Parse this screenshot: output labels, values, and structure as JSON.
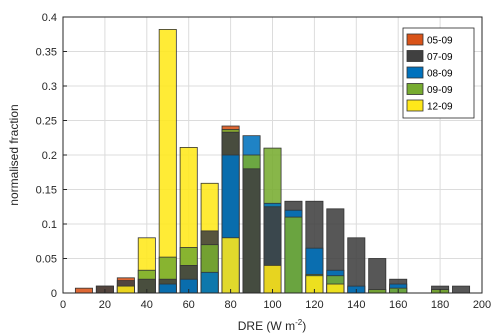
{
  "chart_data": {
    "type": "bar",
    "bar_mode": "overlaid",
    "xlabel": "DRE (W m",
    "xlabel_sup": "-2",
    "xlabel_suffix": ")",
    "ylabel": "normalised fraction",
    "xlim": [
      0,
      200
    ],
    "ylim": [
      0,
      0.4
    ],
    "xticks": [
      0,
      20,
      40,
      60,
      80,
      100,
      120,
      140,
      160,
      180,
      200
    ],
    "yticks": [
      0,
      0.05,
      0.1,
      0.15,
      0.2,
      0.25,
      0.3,
      0.35,
      0.4
    ],
    "grid": true,
    "legend_position": "top-right",
    "x": [
      10,
      20,
      30,
      40,
      50,
      60,
      70,
      80,
      90,
      100,
      110,
      120,
      130,
      140,
      150,
      160,
      170,
      180,
      190
    ],
    "series": [
      {
        "name": "05-09",
        "color": "#D95319",
        "values": [
          0.007,
          0.01,
          0.022,
          0,
          0,
          0,
          0,
          0.242,
          0,
          0,
          0,
          0,
          0,
          0,
          0,
          0,
          0,
          0,
          0
        ]
      },
      {
        "name": "07-09",
        "color": "#404040",
        "values": [
          0,
          0.01,
          0.018,
          0.02,
          0.02,
          0.04,
          0.09,
          0.233,
          0.18,
          0.125,
          0.133,
          0.133,
          0.122,
          0.08,
          0.05,
          0.02,
          0,
          0.01,
          0.01
        ]
      },
      {
        "name": "08-09",
        "color": "#0072BD",
        "values": [
          0,
          0,
          0,
          0,
          0.013,
          0.02,
          0.03,
          0.2,
          0.228,
          0.13,
          0.12,
          0.065,
          0.033,
          0.01,
          0,
          0.013,
          0,
          0,
          0
        ]
      },
      {
        "name": "09-09",
        "color": "#77AC30",
        "values": [
          0,
          0,
          0,
          0.033,
          0.052,
          0.066,
          0.07,
          0.237,
          0.2,
          0.21,
          0.11,
          0.027,
          0.025,
          0,
          0.005,
          0.007,
          0,
          0.005,
          0
        ]
      },
      {
        "name": "12-09",
        "color": "#FFE81A",
        "values": [
          0,
          0,
          0.01,
          0.08,
          0.382,
          0.211,
          0.159,
          0.08,
          0,
          0.04,
          0,
          0.025,
          0.013,
          0,
          0,
          0,
          0,
          0,
          0
        ]
      }
    ]
  }
}
